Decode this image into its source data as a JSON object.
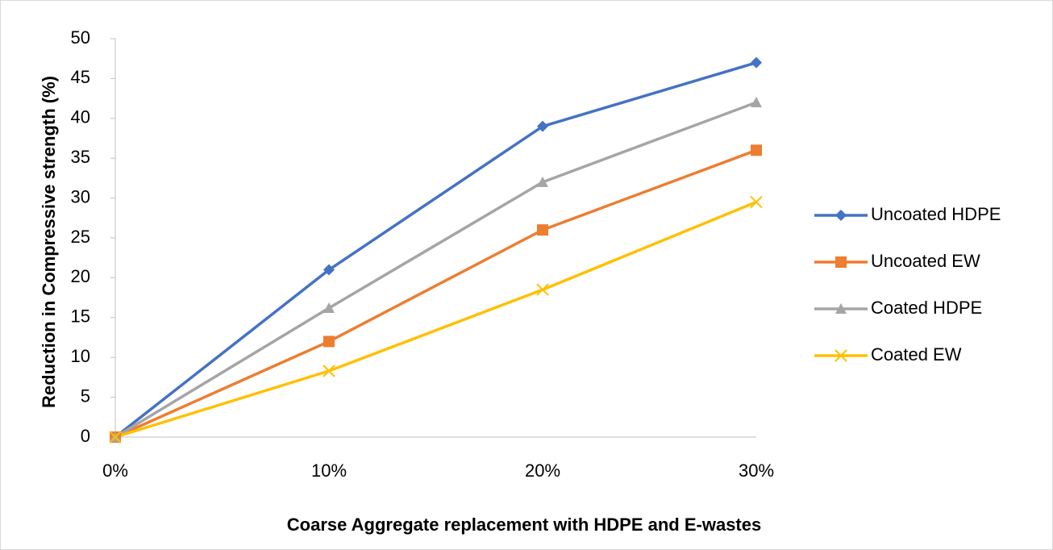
{
  "chart_data": {
    "type": "line",
    "x_label": "Coarse Aggregate replacement with HDPE and E-wastes",
    "y_label": "Reduction in Compressive strength (%)",
    "categories": [
      "0%",
      "10%",
      "20%",
      "30%"
    ],
    "series": [
      {
        "name": "Uncoated HDPE",
        "color": "#4472c4",
        "marker": "diamond",
        "values": [
          0,
          21,
          39,
          47
        ]
      },
      {
        "name": "Uncoated EW",
        "color": "#ed7d31",
        "marker": "square",
        "values": [
          0,
          12,
          26,
          36
        ]
      },
      {
        "name": "Coated HDPE",
        "color": "#a5a5a5",
        "marker": "triangle",
        "values": [
          0,
          16.2,
          32,
          42
        ]
      },
      {
        "name": "Coated EW",
        "color": "#ffc000",
        "marker": "x",
        "values": [
          0,
          8.3,
          18.5,
          29.5
        ]
      }
    ],
    "ylim": [
      0,
      50
    ],
    "yticks": [
      0,
      5,
      10,
      15,
      20,
      25,
      30,
      35,
      40,
      45,
      50
    ],
    "grid": false,
    "legend": "right"
  }
}
